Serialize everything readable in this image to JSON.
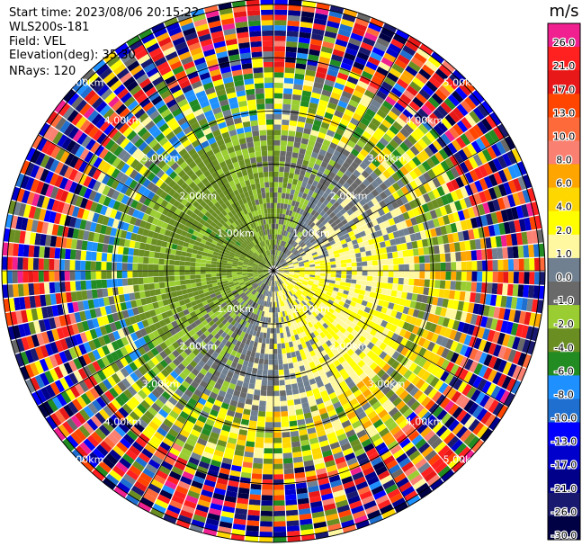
{
  "info": {
    "start_time": "Start time: 2023/08/06 20:15:22",
    "instrument": "WLS200s-181",
    "field": "Field: VEL",
    "elevation": "Elevation(deg): 35.30",
    "nrays": "NRays: 120"
  },
  "colorbar": {
    "unit": "m/s",
    "bins": [
      {
        "label": "26.0",
        "color": "#f02090"
      },
      {
        "label": "21.0",
        "color": "#ff2020"
      },
      {
        "label": "17.0",
        "color": "#e81818"
      },
      {
        "label": "13.0",
        "color": "#ff4500"
      },
      {
        "label": "10.0",
        "color": "#ff6a3a"
      },
      {
        "label": "8.0",
        "color": "#fa8072"
      },
      {
        "label": "6.0",
        "color": "#ffa500"
      },
      {
        "label": "4.0",
        "color": "#ffd700"
      },
      {
        "label": "2.0",
        "color": "#ffff00"
      },
      {
        "label": "1.0",
        "color": "#fff8a0"
      },
      {
        "label": "0.0",
        "color": "#708090"
      },
      {
        "label": "-1.0",
        "color": "#696969"
      },
      {
        "label": "-2.0",
        "color": "#9acd32"
      },
      {
        "label": "-4.0",
        "color": "#6b8e23"
      },
      {
        "label": "-6.0",
        "color": "#228b22"
      },
      {
        "label": "-8.0",
        "color": "#1e90ff"
      },
      {
        "label": "-10.0",
        "color": "#1f6fd0"
      },
      {
        "label": "-13.0",
        "color": "#0000ff"
      },
      {
        "label": "-17.0",
        "color": "#0000cd"
      },
      {
        "label": "-21.0",
        "color": "#00008b"
      },
      {
        "label": "-26.0",
        "color": "#191970"
      },
      {
        "label": "-30.0",
        "color": "#000044"
      }
    ]
  },
  "chart_data": {
    "type": "heatmap",
    "field": "VEL",
    "nrays": 120,
    "elevation_deg": 35.3,
    "range_rings_km": [
      1.0,
      2.0,
      3.0,
      4.0,
      5.0
    ],
    "range_ring_labels": [
      "1.00km",
      "2.00km",
      "3.00km",
      "4.00km",
      "5.00km"
    ],
    "max_range_km": 5.1,
    "value_range": [
      -30.0,
      26.0
    ],
    "unit": "m/s",
    "pattern": "Positive (toward yellow/orange 1-6 m/s) velocities dominate the east and south sectors within ~2.5 km; negative (green, -2 to -6 m/s) velocities dominate the west and northwest sectors; grey near-zero values near 1-3 km north and south; noisy multicolor returns beyond ~3.5 km."
  }
}
